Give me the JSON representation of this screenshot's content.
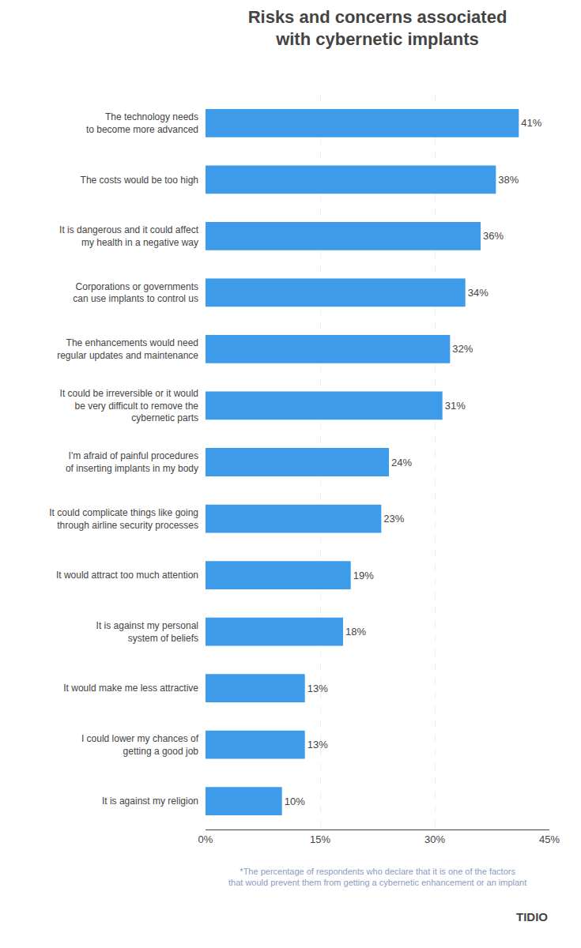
{
  "chart_data": {
    "type": "bar",
    "orientation": "horizontal",
    "title": "Risks and concerns associated\nwith cybernetic implants",
    "categories": [
      "The technology needs\nto become more advanced",
      "The costs would be too high",
      "It is dangerous and it could affect\nmy health in a negative way",
      "Corporations or governments\ncan use implants to control us",
      "The enhancements would need\nregular updates and maintenance",
      "It could be irreversible or it would\nbe very difficult to remove the\ncybernetic parts",
      "I'm afraid of painful procedures\nof inserting implants in my body",
      "It could complicate things like going\nthrough airline security processes",
      "It would attract too much attention",
      "It is against my personal\nsystem of beliefs",
      "It would make me less attractive",
      "I could lower my chances of\ngetting a good job",
      "It is against my religion"
    ],
    "values": [
      41,
      38,
      36,
      34,
      32,
      31,
      24,
      23,
      19,
      18,
      13,
      13,
      10
    ],
    "value_labels": [
      "41%",
      "38%",
      "36%",
      "34%",
      "32%",
      "31%",
      "24%",
      "23%",
      "19%",
      "18%",
      "13%",
      "13%",
      "10%"
    ],
    "data_labels": true,
    "color": "#3d9be9",
    "xlim": [
      0,
      45
    ],
    "xticks": [
      {
        "value": 0,
        "label": "0%"
      },
      {
        "value": 15,
        "label": "15%"
      },
      {
        "value": 30,
        "label": "30%"
      },
      {
        "value": 45,
        "label": "45%"
      }
    ],
    "grid": true,
    "annotations": [
      "*The percentage of respondents who declare that it is one of the factors\nthat would prevent them from getting a cybernetic enhancement or an implant",
      "TIDIO"
    ]
  }
}
